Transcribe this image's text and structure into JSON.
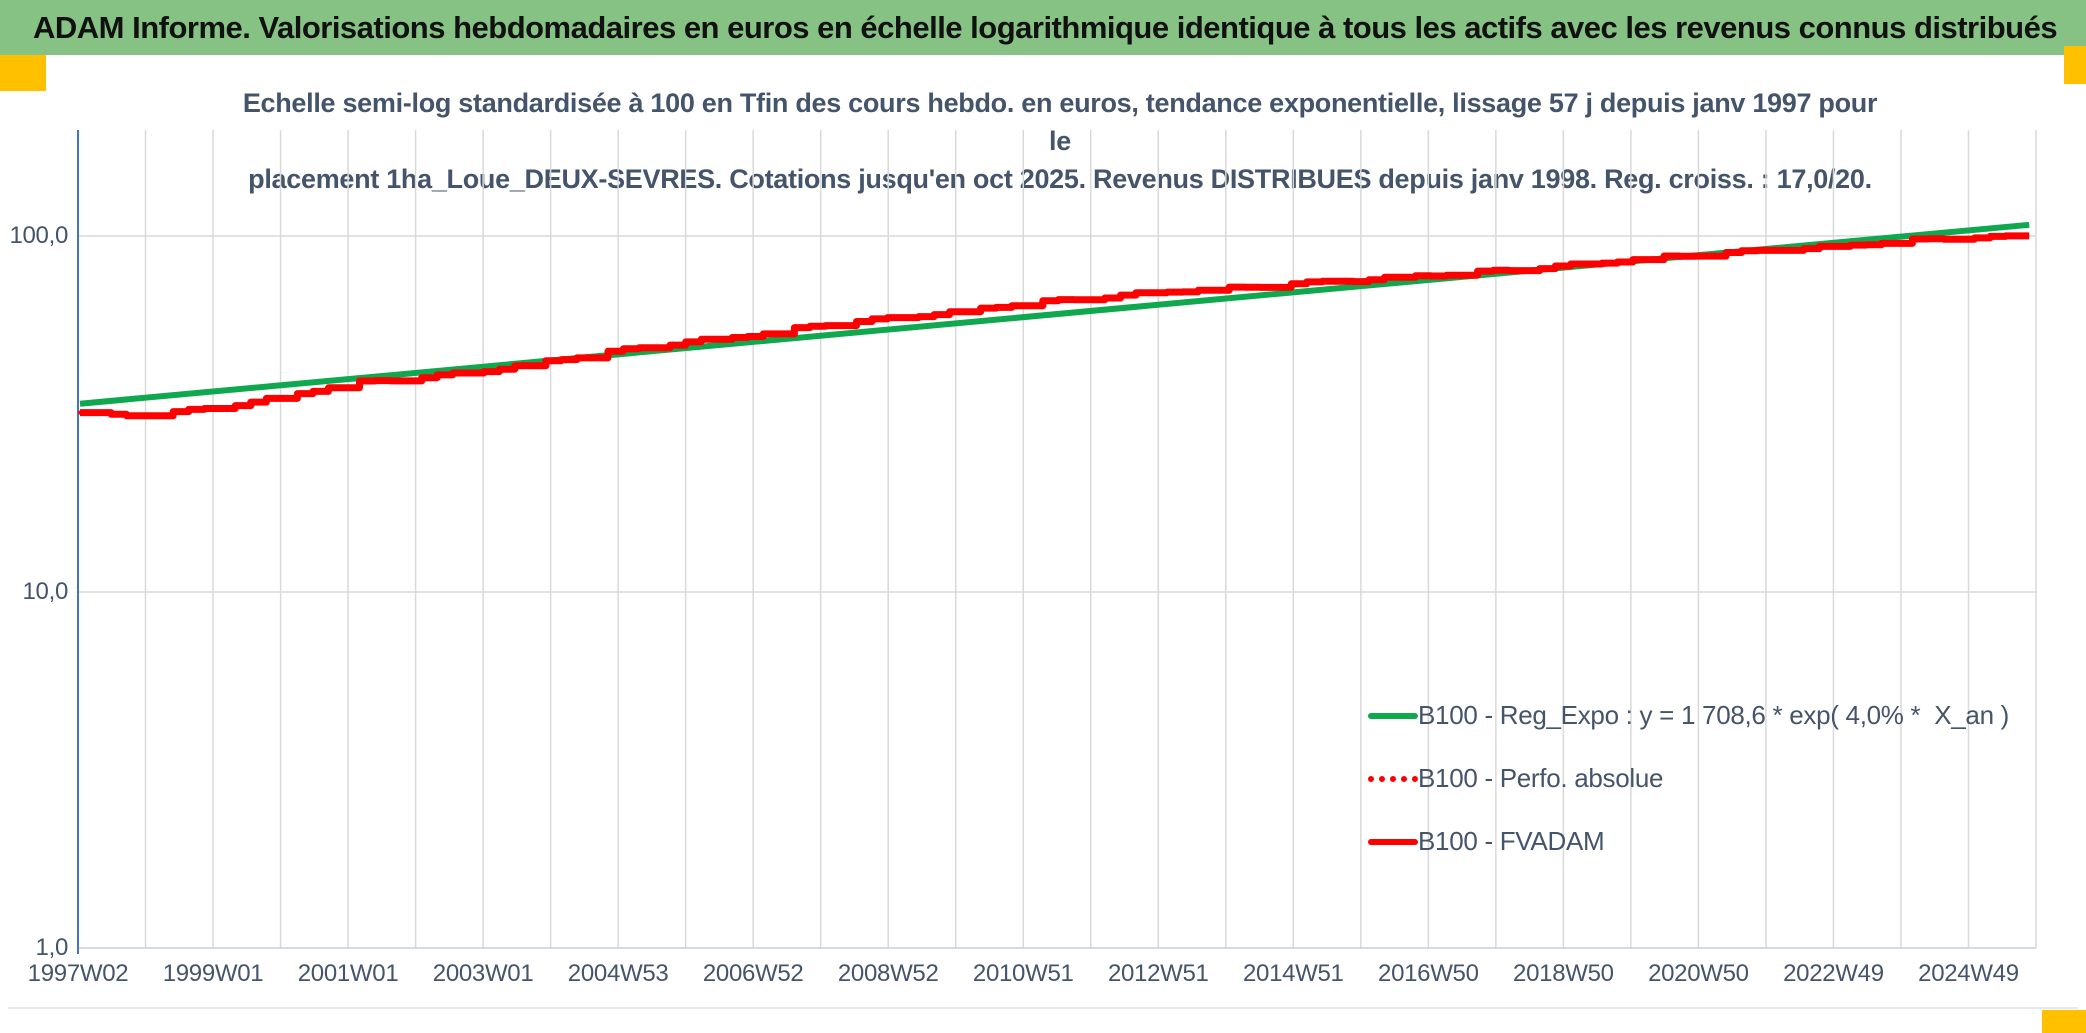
{
  "window": {
    "title": "ADAM Informe. Valorisations hebdomadaires en euros en échelle logarithmique identique à tous les actifs avec les revenus connus distribués"
  },
  "chart_data": {
    "type": "line",
    "title_line1": "Echelle semi-log standardisée à 100 en Tfin des cours hebdo. en euros, tendance exponentielle, lissage 57 j depuis janv 1997 pour le",
    "title_line2": "placement 1ha_Loue_DEUX-SEVRES. Cotations jusqu'en oct 2025. Revenus DISTRIBUES depuis janv 1998. Reg. croiss. : 17,0/20.",
    "x_axis": {
      "unit": "semaine (annéeWsemaine)",
      "tick_labels": [
        "1997W02",
        "1999W01",
        "2001W01",
        "2003W01",
        "2004W53",
        "2006W52",
        "2008W52",
        "2010W51",
        "2012W51",
        "2014W51",
        "2016W50",
        "2018W50",
        "2020W50",
        "2022W49",
        "2024W49"
      ],
      "domain_years": [
        1997.0,
        2026.0
      ],
      "grid": "yearly"
    },
    "y_axis": {
      "scale": "log10",
      "tick_labels": [
        "100,0",
        "10,0",
        "1,0"
      ],
      "tick_values": [
        100,
        10,
        1
      ],
      "range": [
        1,
        200
      ],
      "grid": "decades"
    },
    "legend": {
      "position": "inside-right",
      "entries": [
        {
          "label": "B100 - Reg_Expo : y = 1 708,6 * exp( 4,0% *  X_an )",
          "style": "solid",
          "color": "#0FA84F"
        },
        {
          "label": "B100 - Perfo. absolue",
          "style": "dotted",
          "color": "#FF0000"
        },
        {
          "label": "B100 - FVADAM",
          "style": "solid",
          "color": "#FF0000"
        }
      ]
    },
    "series": [
      {
        "name": "B100 - Reg_Expo : y = 1 708,6 * exp( 4,0% *  X_an )",
        "style": "solid",
        "color": "#0FA84F",
        "width": 6,
        "points": [
          [
            1997.03,
            33.8
          ],
          [
            2025.9,
            107.5
          ]
        ]
      },
      {
        "name": "B100 - Perfo. absolue",
        "style": "dotted",
        "color": "#FF0000",
        "width": 4,
        "note": "superposée à B100 - FVADAM"
      },
      {
        "name": "B100 - FVADAM",
        "style": "solid",
        "color": "#FF0000",
        "width": 7,
        "points": [
          [
            1997.03,
            31.8
          ],
          [
            1997.6,
            31.2
          ],
          [
            1998.2,
            31.8
          ],
          [
            1999,
            33.0
          ],
          [
            2000,
            35.2
          ],
          [
            2001,
            38.5
          ],
          [
            2001.6,
            39.3
          ],
          [
            2002,
            40.0
          ],
          [
            2003,
            42.0
          ],
          [
            2004,
            44.5
          ],
          [
            2005,
            47.5
          ],
          [
            2006,
            50.5
          ],
          [
            2007,
            53.0
          ],
          [
            2008,
            56.0
          ],
          [
            2009,
            58.5
          ],
          [
            2010,
            61.5
          ],
          [
            2011,
            65.0
          ],
          [
            2012,
            66.5
          ],
          [
            2013,
            69.5
          ],
          [
            2014,
            71.5
          ],
          [
            2015,
            73.5
          ],
          [
            2016,
            75.0
          ],
          [
            2017,
            77.5
          ],
          [
            2018,
            80.0
          ],
          [
            2019,
            82.5
          ],
          [
            2020,
            85.5
          ],
          [
            2021,
            88.5
          ],
          [
            2022,
            91.5
          ],
          [
            2023,
            93.5
          ],
          [
            2024,
            96.5
          ],
          [
            2025,
            99.0
          ],
          [
            2025.9,
            100.0
          ]
        ]
      }
    ]
  },
  "colors": {
    "header_bar": "#86C284",
    "accent_yellow": "#FFC000",
    "chart_text": "#44546A",
    "axis_line": "#4472C4",
    "bottom_axis": "#C3CFE4",
    "gridline": "#D9D9D9",
    "green_series": "#0FA84F",
    "red_series": "#FF0000"
  }
}
